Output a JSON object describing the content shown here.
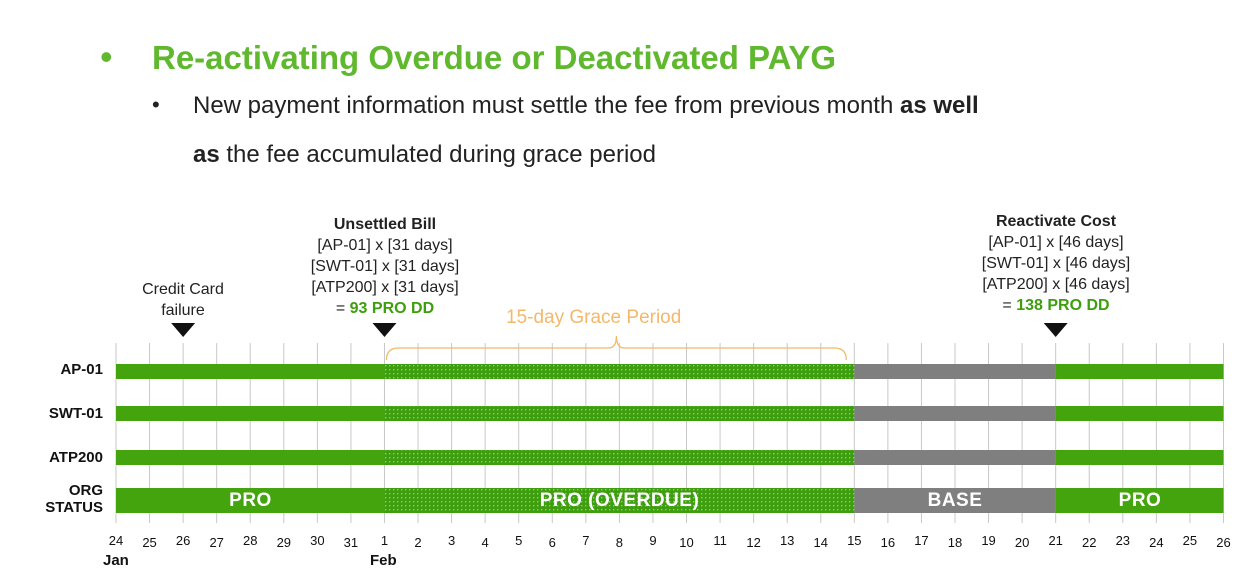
{
  "heading": {
    "bullet": "•",
    "title": "Re-activating Overdue or Deactivated PAYG",
    "sub_bullet": "•",
    "line1_plain": "New payment information must settle the fee from previous month ",
    "line1_bold": "as well",
    "line2_bold": "as",
    "line2_plain": " the fee accumulated during grace period"
  },
  "annotations": {
    "credit_card": {
      "line1": "Credit Card",
      "line2": "failure"
    },
    "unsettled": {
      "title": "Unsettled Bill",
      "items": [
        "[AP-01] x [31 days]",
        "[SWT-01] x [31 days]",
        "[ATP200] x [31 days]"
      ],
      "eq": "= ",
      "total": "93 PRO DD"
    },
    "reactivate": {
      "title": "Reactivate Cost",
      "items": [
        "[AP-01] x [46 days]",
        "[SWT-01] x [46 days]",
        "[ATP200] x [46 days]"
      ],
      "eq": "= ",
      "total": "138 PRO DD"
    },
    "grace_period": "15-day Grace Period"
  },
  "rows": {
    "ap01": "AP-01",
    "swt01": "SWT-01",
    "atp200": "ATP200",
    "org_line1": "ORG",
    "org_line2": "STATUS"
  },
  "status_labels": {
    "pro": "PRO",
    "overdue": "PRO (OVERDUE)",
    "base": "BASE",
    "pro_again": "PRO"
  },
  "axis": {
    "days": [
      "24",
      "25",
      "26",
      "27",
      "28",
      "29",
      "30",
      "31",
      "1",
      "2",
      "3",
      "4",
      "5",
      "6",
      "7",
      "8",
      "9",
      "10",
      "11",
      "12",
      "13",
      "14",
      "15",
      "16",
      "17",
      "18",
      "19",
      "20",
      "21",
      "22",
      "23",
      "24",
      "25",
      "26"
    ],
    "month_jan": "Jan",
    "month_feb": "Feb"
  },
  "timeline_data": {
    "credit_card_failure_day_index": 2,
    "unsettled_bill_day_index": 8,
    "reactivate_day_index": 28,
    "segments": [
      {
        "status": "pro",
        "from_index": 0,
        "to_index": 8
      },
      {
        "status": "overdue",
        "from_index": 8,
        "to_index": 22
      },
      {
        "status": "base",
        "from_index": 22,
        "to_index": 28
      },
      {
        "status": "pro",
        "from_index": 28,
        "to_index": 33
      }
    ],
    "grace_period_days": 15
  },
  "colors": {
    "green": "#3d9e0e",
    "bar_green": "#43a40d",
    "gray": "#7f7f7f",
    "title_green": "#5fb82e",
    "grace_orange": "#f4b86a",
    "grid": "#c8c8c8"
  }
}
